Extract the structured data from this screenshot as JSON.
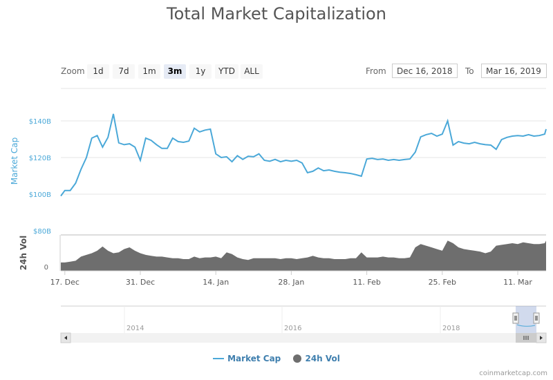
{
  "chart_data": {
    "type": "line",
    "title": "Total Market Capitalization",
    "zoom": {
      "label": "Zoom",
      "buttons": [
        "1d",
        "7d",
        "1m",
        "3m",
        "1y",
        "YTD",
        "ALL"
      ],
      "selected": "3m"
    },
    "range": {
      "from_label": "From",
      "from": "Dec 16, 2018",
      "to_label": "To",
      "to": "Mar 16, 2019"
    },
    "x_start_date": "2018-12-16",
    "x_ticks": [
      "17. Dec",
      "31. Dec",
      "14. Jan",
      "28. Jan",
      "11. Feb",
      "25. Feb",
      "11. Mar"
    ],
    "x_tick_dates": [
      "2018-12-17",
      "2018-12-31",
      "2019-01-14",
      "2019-01-28",
      "2019-02-11",
      "2019-02-25",
      "2019-03-11"
    ],
    "grid": true,
    "market_cap": {
      "name": "Market Cap",
      "axis_label": "Market Cap",
      "color": "#4aa8d8",
      "unit": "$B",
      "ylim": [
        80,
        150
      ],
      "y_ticks": [
        "$80B",
        "$100B",
        "$120B",
        "$140B"
      ],
      "y_tick_values": [
        80,
        100,
        120,
        140
      ],
      "values": [
        99,
        102,
        102,
        106,
        113.6,
        120,
        130.6,
        132,
        125.7,
        131,
        143.8,
        128,
        127,
        127.5,
        125.7,
        118.5,
        130.6,
        129.4,
        127,
        125,
        125,
        130.6,
        128.7,
        128.3,
        129,
        136,
        134,
        135,
        135.5,
        122,
        120,
        120.4,
        117.7,
        121,
        119,
        120.7,
        120.4,
        122,
        118.5,
        118,
        119,
        117.7,
        118.5,
        118,
        118.5,
        117,
        111.7,
        112.5,
        114.3,
        112.8,
        113.2,
        112.5,
        112,
        111.7,
        111.3,
        110.6,
        109.8,
        119.2,
        119.6,
        118.9,
        119.2,
        118.5,
        118.9,
        118.5,
        118.9,
        119.2,
        123,
        131.3,
        132.5,
        133.2,
        131.7,
        132.8,
        140,
        126.8,
        128.7,
        127.9,
        127.5,
        128.3,
        127.5,
        127,
        126.8,
        124.5,
        129.8,
        131,
        131.7,
        132,
        131.7,
        132.5,
        131.7,
        132,
        132.8,
        135.5
      ]
    },
    "volume": {
      "name": "24h Vol",
      "axis_label": "24h Vol",
      "color": "#6e6e6e",
      "unit": "$B",
      "ylim": [
        0,
        60
      ],
      "y_ticks": [
        "0"
      ],
      "values": [
        10,
        10,
        11,
        12,
        17,
        19,
        21,
        24,
        29,
        24,
        21,
        22,
        26,
        28,
        24,
        21,
        19,
        18,
        17,
        17,
        16,
        15,
        15,
        14,
        14,
        17,
        15,
        16,
        16,
        17,
        15,
        22,
        20,
        16,
        14,
        13,
        15,
        15,
        15,
        15,
        15,
        14,
        15,
        15,
        14,
        15,
        16,
        18,
        16,
        15,
        15,
        14,
        14,
        14,
        15,
        15,
        22,
        16,
        16,
        16,
        17,
        16,
        16,
        15,
        15,
        16,
        28,
        32,
        30,
        28,
        26,
        24,
        36,
        33,
        28,
        26,
        25,
        24,
        23,
        21,
        23,
        30,
        31,
        32,
        33,
        32,
        34,
        33,
        32,
        32,
        33,
        36
      ]
    },
    "navigator": {
      "ticks": [
        "2014",
        "2016",
        "2018"
      ]
    },
    "legend": {
      "position": "bottom-center",
      "items": [
        "Market Cap",
        "24h Vol"
      ]
    },
    "credit": "coinmarketcap.com"
  }
}
